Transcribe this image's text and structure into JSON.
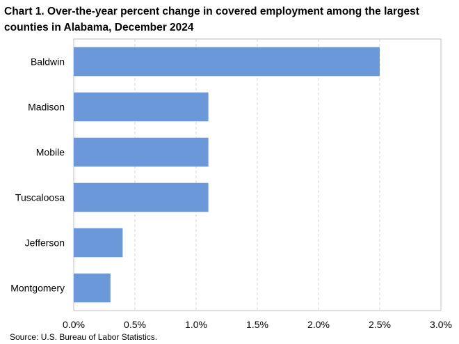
{
  "title": "Chart 1. Over-the-year percent change in covered employment among the largest counties in Alabama, December 2024",
  "source": "Source: U.S. Bureau of Labor Statistics.",
  "chart_data": {
    "type": "bar",
    "orientation": "horizontal",
    "title": "Chart 1. Over-the-year percent change in covered employment among the largest counties in Alabama, December 2024",
    "categories": [
      "Baldwin",
      "Madison",
      "Mobile",
      "Tuscaloosa",
      "Jefferson",
      "Montgomery"
    ],
    "values": [
      2.5,
      1.1,
      1.1,
      1.1,
      0.4,
      0.3
    ],
    "xlabel": "",
    "ylabel": "",
    "xlim": [
      0,
      3.0
    ],
    "ticks": [
      0,
      0.5,
      1.0,
      1.5,
      2.0,
      2.5,
      3.0
    ],
    "tick_labels": [
      "0.0%",
      "0.5%",
      "1.0%",
      "1.5%",
      "2.0%",
      "2.5%",
      "3.0%"
    ],
    "bar_color": "#6a98d8",
    "grid": "vertical-dashed",
    "legend": "none"
  }
}
